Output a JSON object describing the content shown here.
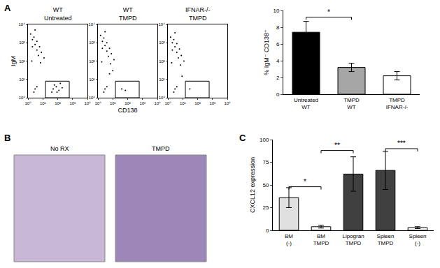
{
  "panel_labels": [
    "A",
    "B",
    "C"
  ],
  "chart_data": [
    {
      "type": "scatter",
      "title": "WT\nUntreated",
      "ylabel": "IgM",
      "log": true,
      "xlim": [
        1,
        10000
      ],
      "ylim": [
        1,
        10000
      ],
      "xticks": [
        {
          "value": 1,
          "label": "10⁰"
        },
        {
          "value": 10,
          "label": "10¹"
        },
        {
          "value": 100,
          "label": "10²"
        },
        {
          "value": 1000,
          "label": "10³"
        },
        {
          "value": 10000,
          "label": "10⁴"
        }
      ],
      "yticks": [
        {
          "value": 1,
          "label": "10⁰"
        },
        {
          "value": 10,
          "label": "10¹"
        },
        {
          "value": 100,
          "label": "10²"
        },
        {
          "value": 1000,
          "label": "10³"
        },
        {
          "value": 10000,
          "label": "10⁴"
        }
      ],
      "x": [
        1.5,
        2,
        3,
        4,
        5,
        2.5,
        6,
        8,
        3,
        1.8,
        12,
        4,
        7,
        2,
        50,
        80,
        120,
        200,
        60,
        40,
        3,
        2.5,
        4,
        150,
        90
      ],
      "y": [
        3000,
        1500,
        800,
        400,
        200,
        2000,
        600,
        300,
        5000,
        100,
        150,
        1200,
        80,
        600,
        3,
        4,
        2.5,
        3.5,
        5,
        2,
        3,
        2,
        4,
        6,
        2
      ],
      "gate": {
        "x": [
          15,
          600
        ],
        "y": [
          1,
          8
        ]
      },
      "color": "#000000"
    },
    {
      "type": "scatter",
      "title": "WT\nTMPD",
      "xlabel": "CD138",
      "log": true,
      "xlim": [
        1,
        10000
      ],
      "ylim": [
        1,
        10000
      ],
      "xticks": [
        {
          "value": 1,
          "label": "10⁰"
        },
        {
          "value": 10,
          "label": "10¹"
        },
        {
          "value": 100,
          "label": "10²"
        },
        {
          "value": 1000,
          "label": "10³"
        },
        {
          "value": 10000,
          "label": "10⁴"
        }
      ],
      "yticks": [
        {
          "value": 1,
          "label": "10⁰"
        },
        {
          "value": 10,
          "label": "10¹"
        },
        {
          "value": 100,
          "label": "10²"
        },
        {
          "value": 1000,
          "label": "10³"
        },
        {
          "value": 10000,
          "label": "10⁴"
        }
      ],
      "x": [
        1.5,
        2,
        3,
        4,
        5,
        2.5,
        6,
        8,
        3,
        1.8,
        12,
        4,
        7,
        2,
        40,
        70,
        3,
        2.5,
        4,
        10,
        6
      ],
      "y": [
        2500,
        1200,
        700,
        350,
        180,
        1800,
        500,
        250,
        4000,
        90,
        120,
        1000,
        70,
        500,
        3,
        2.5,
        3,
        2,
        4,
        30,
        20
      ],
      "gate": {
        "x": [
          15,
          600
        ],
        "y": [
          1,
          8
        ]
      },
      "color": "#000000"
    },
    {
      "type": "scatter",
      "title": "IFNAR-/-\nTMPD",
      "log": true,
      "xlim": [
        1,
        10000
      ],
      "ylim": [
        1,
        10000
      ],
      "xticks": [
        {
          "value": 1,
          "label": "10⁰"
        },
        {
          "value": 10,
          "label": "10¹"
        },
        {
          "value": 100,
          "label": "10²"
        },
        {
          "value": 1000,
          "label": "10³"
        },
        {
          "value": 10000,
          "label": "10⁴"
        }
      ],
      "yticks": [
        {
          "value": 1,
          "label": "10⁰"
        },
        {
          "value": 10,
          "label": "10¹"
        },
        {
          "value": 100,
          "label": "10²"
        },
        {
          "value": 1000,
          "label": "10³"
        },
        {
          "value": 10000,
          "label": "10⁴"
        }
      ],
      "x": [
        1.5,
        2,
        3,
        4,
        5,
        2.5,
        6,
        8,
        3,
        1.8,
        12,
        4,
        7,
        2,
        30,
        3,
        2.5,
        4,
        9
      ],
      "y": [
        2000,
        1000,
        600,
        300,
        150,
        1500,
        450,
        200,
        3500,
        80,
        100,
        900,
        60,
        400,
        3,
        3,
        2,
        4,
        15
      ],
      "gate": {
        "x": [
          15,
          600
        ],
        "y": [
          1,
          8
        ]
      },
      "color": "#000000"
    },
    {
      "type": "bar",
      "categories": [
        "Untreated\nWT",
        "TMPD\nWT",
        "TMPD\nIFNAR-/-"
      ],
      "values": [
        7.4,
        3.2,
        2.2
      ],
      "errors": [
        1.3,
        0.5,
        0.5
      ],
      "colors": [
        "#000000",
        "#a6a6a6",
        "#ffffff"
      ],
      "ylabel": "% IgM⁻ CD138⁺",
      "ylim": [
        0,
        10
      ],
      "yticks": [
        0,
        2,
        4,
        6,
        8,
        10
      ],
      "significance": [
        {
          "from": 0,
          "to": 1,
          "y": 9.2,
          "label": "*"
        }
      ]
    },
    {
      "type": "image",
      "panels": [
        "No RX",
        "TMPD"
      ]
    },
    {
      "type": "bar",
      "categories": [
        "BM\n(-)",
        "BM\nTMPD",
        "Lipogran\nTMPD",
        "Spleen\nTMPD",
        "Spleen\n(-)"
      ],
      "values": [
        36,
        4,
        62,
        66,
        3
      ],
      "errors": [
        11,
        1.5,
        19,
        21,
        1
      ],
      "colors": [
        "#e0e0e0",
        "#ffffff",
        "#404040",
        "#404040",
        "#ffffff"
      ],
      "ylabel": "CXCL12 expression",
      "ylim": [
        0,
        100
      ],
      "yticks": [
        0,
        25,
        50,
        75,
        100
      ],
      "significance": [
        {
          "from": 0,
          "to": 1,
          "y": 48,
          "label": "*"
        },
        {
          "from": 1,
          "to": 2,
          "y": 88,
          "label": "**"
        },
        {
          "from": 3,
          "to": 4,
          "y": 90,
          "label": "***"
        }
      ]
    }
  ]
}
